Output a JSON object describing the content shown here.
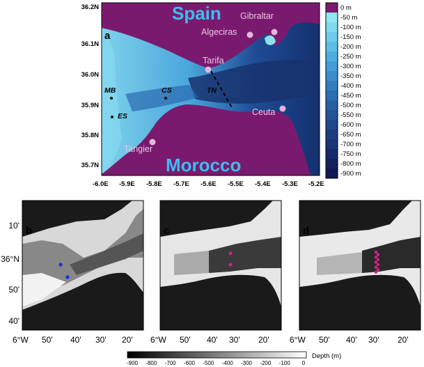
{
  "panel_a": {
    "label": "a",
    "lat_ticks": [
      "36.2N",
      "36.1N",
      "36.0N",
      "35.9N",
      "35.8N",
      "35.7N"
    ],
    "lon_ticks": [
      "-6.0E",
      "-5.9E",
      "-5.8E",
      "-5.7E",
      "-5.6E",
      "-5.5E",
      "-5.4E",
      "-5.3E",
      "-5.2E"
    ],
    "countries": {
      "north": "Spain",
      "south": "Morocco"
    },
    "places": {
      "gibraltar": "Gibraltar",
      "algeciras": "Algeciras",
      "tarifa": "Tarifa",
      "ceuta": "Ceuta",
      "tangier": "Tangier"
    },
    "sites": {
      "mb": "MB",
      "cs": "CS",
      "es": "ES",
      "tn": "TN"
    },
    "colorbar": {
      "labels": [
        "0 m",
        "-50 m",
        "-100 m",
        "-150 m",
        "-200 m",
        "-250 m",
        "-300 m",
        "-350 m",
        "-400 m",
        "-450 m",
        "-500 m",
        "-550 m",
        "-600 m",
        "-650 m",
        "-700 m",
        "-750 m",
        "-800 m",
        "-900 m"
      ],
      "colors": [
        "#7a1a6e",
        "#8fe6f0",
        "#80d8ee",
        "#6fcbea",
        "#5ebde6",
        "#4eadde",
        "#449dd6",
        "#3b8dcc",
        "#337dbf",
        "#2c6eb1",
        "#2660a3",
        "#225497",
        "#1e488b",
        "#1b3e80",
        "#183475",
        "#152a6a",
        "#12205e",
        "#0f1752"
      ]
    }
  },
  "panel_b": {
    "label": "b",
    "lat_ticks": [
      "10'",
      "36°N",
      "50'",
      "40'"
    ],
    "lon_ticks": [
      "6°W",
      "50'",
      "40'",
      "30'",
      "20'"
    ]
  },
  "panel_c": {
    "label": "c",
    "lon_ticks": [
      "6°W",
      "50'",
      "40'",
      "30'",
      "20'"
    ]
  },
  "panel_d": {
    "label": "d",
    "lon_ticks": [
      "6°W",
      "50'",
      "40'",
      "30'",
      "20'"
    ]
  },
  "depth_colorbar": {
    "ticks": [
      "-900",
      "-800",
      "-700",
      "-600",
      "-500",
      "-400",
      "-300",
      "-200",
      "-100",
      "0"
    ],
    "title": "Depth (m)"
  },
  "colors": {
    "land": "#7a1a6e",
    "grey_land": "#1a1a1a",
    "markers_b": "#1a2fd6",
    "markers_cd": "#d4208c",
    "place_dot": "#e3b6d8",
    "section_line": "#000000"
  }
}
